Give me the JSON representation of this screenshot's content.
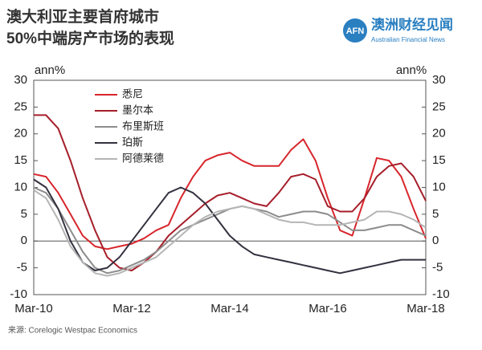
{
  "chart_data": {
    "type": "line",
    "title": "澳大利亚主要首府城市",
    "subtitle": "50%中端房产市场的表现",
    "ylabel": "ann%",
    "y2label": "ann%",
    "source": "来源: Corelogic Westpac Economics",
    "logo": {
      "mark": "AFN",
      "name": "澳洲财经见闻",
      "tagline": "Australian Financial News"
    },
    "categories": [
      "Mar-10",
      null,
      null,
      null,
      null,
      null,
      null,
      null,
      "Mar-12",
      null,
      null,
      null,
      null,
      null,
      null,
      null,
      "Mar-14",
      null,
      null,
      null,
      null,
      null,
      null,
      null,
      "Mar-16",
      null,
      null,
      null,
      null,
      null,
      null,
      null,
      "Mar-18"
    ],
    "series": [
      {
        "name": "悉尼",
        "color": "#d7262c",
        "values": [
          12.5,
          12,
          9,
          5,
          1,
          -1,
          -1.5,
          -1,
          -0.5,
          0.5,
          2,
          3,
          8,
          12,
          15,
          16,
          16.5,
          15,
          14,
          14,
          14,
          17,
          19,
          15,
          8,
          2,
          1,
          8,
          15.5,
          15,
          12,
          6,
          0.5
        ]
      },
      {
        "name": "墨尔本",
        "color": "#a61e2a",
        "values": [
          23.5,
          23.5,
          21,
          15,
          8,
          2,
          -3,
          -5,
          -5.5,
          -4,
          -2,
          1,
          3,
          5,
          7,
          8.5,
          9,
          8,
          7,
          6.5,
          9,
          12,
          12.5,
          11.5,
          6.5,
          5.5,
          5.5,
          8,
          12,
          14,
          14.5,
          12,
          7.5
        ]
      },
      {
        "name": "布里斯班",
        "color": "#8c8c8c",
        "values": [
          10,
          9,
          6,
          2,
          -2,
          -5,
          -6,
          -5.5,
          -4.5,
          -3.5,
          -2,
          0,
          2,
          3,
          4,
          5,
          6,
          6.5,
          6,
          5.5,
          4.5,
          5,
          5.5,
          5.5,
          5,
          3.5,
          2,
          2,
          2.5,
          3,
          3,
          2,
          1
        ]
      },
      {
        "name": "珀斯",
        "color": "#35303f",
        "values": [
          11.5,
          10,
          6,
          0,
          -4,
          -5.5,
          -5,
          -3,
          0,
          3,
          6,
          9,
          10,
          9,
          7,
          4,
          1,
          -1,
          -2.5,
          -3,
          -3.5,
          -4,
          -4.5,
          -5,
          -5.5,
          -6,
          -5.5,
          -5,
          -4.5,
          -4,
          -3.5,
          -3.5,
          -3.5
        ]
      },
      {
        "name": "阿德莱德",
        "color": "#b5b5b5",
        "values": [
          9.5,
          8,
          4,
          -1,
          -4,
          -6,
          -6.5,
          -6,
          -5,
          -4,
          -3,
          -1,
          1,
          3,
          4.5,
          5.5,
          6,
          6.5,
          6,
          5,
          4,
          3.5,
          3.5,
          3,
          3,
          3,
          3.5,
          4,
          5.5,
          5.5,
          5,
          4,
          2.5
        ]
      }
    ],
    "ylim": [
      -10,
      30
    ],
    "yticks": [
      -10,
      -5,
      0,
      5,
      10,
      15,
      20,
      25,
      30
    ],
    "y2lim": [
      -10,
      30
    ],
    "y2ticks": [
      -10,
      -5,
      0,
      5,
      10,
      15,
      20,
      25,
      30
    ],
    "zero_line": true
  }
}
